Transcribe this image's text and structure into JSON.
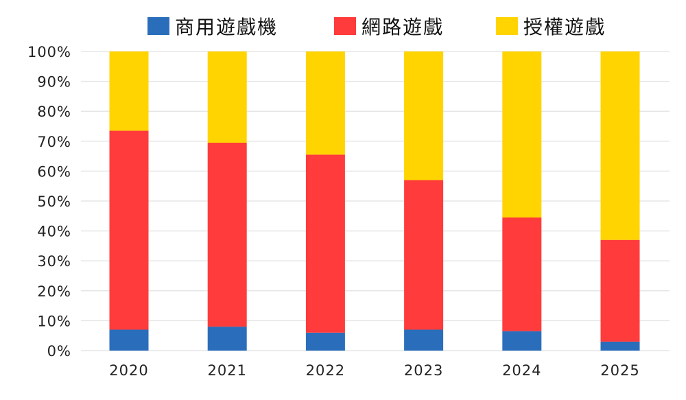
{
  "chart_data": {
    "type": "bar",
    "stacked": true,
    "title": "",
    "xlabel": "",
    "ylabel": "",
    "categories": [
      "2020",
      "2021",
      "2022",
      "2023",
      "2024",
      "2025"
    ],
    "ylim": [
      0,
      100
    ],
    "yticks": [
      "0%",
      "10%",
      "20%",
      "30%",
      "40%",
      "50%",
      "60%",
      "70%",
      "80%",
      "90%",
      "100%"
    ],
    "grid": true,
    "legend_position": "top",
    "series": [
      {
        "name": "商用遊戲機",
        "color": "#2a6ebb",
        "values": [
          7,
          8,
          6,
          7,
          6.5,
          3
        ]
      },
      {
        "name": "網路遊戲",
        "color": "#ff3b3b",
        "values": [
          66.5,
          61.5,
          59.5,
          50,
          38,
          34
        ]
      },
      {
        "name": "授權遊戲",
        "color": "#ffd400",
        "values": [
          26.5,
          30.5,
          34.5,
          43,
          55.5,
          63
        ]
      }
    ]
  }
}
